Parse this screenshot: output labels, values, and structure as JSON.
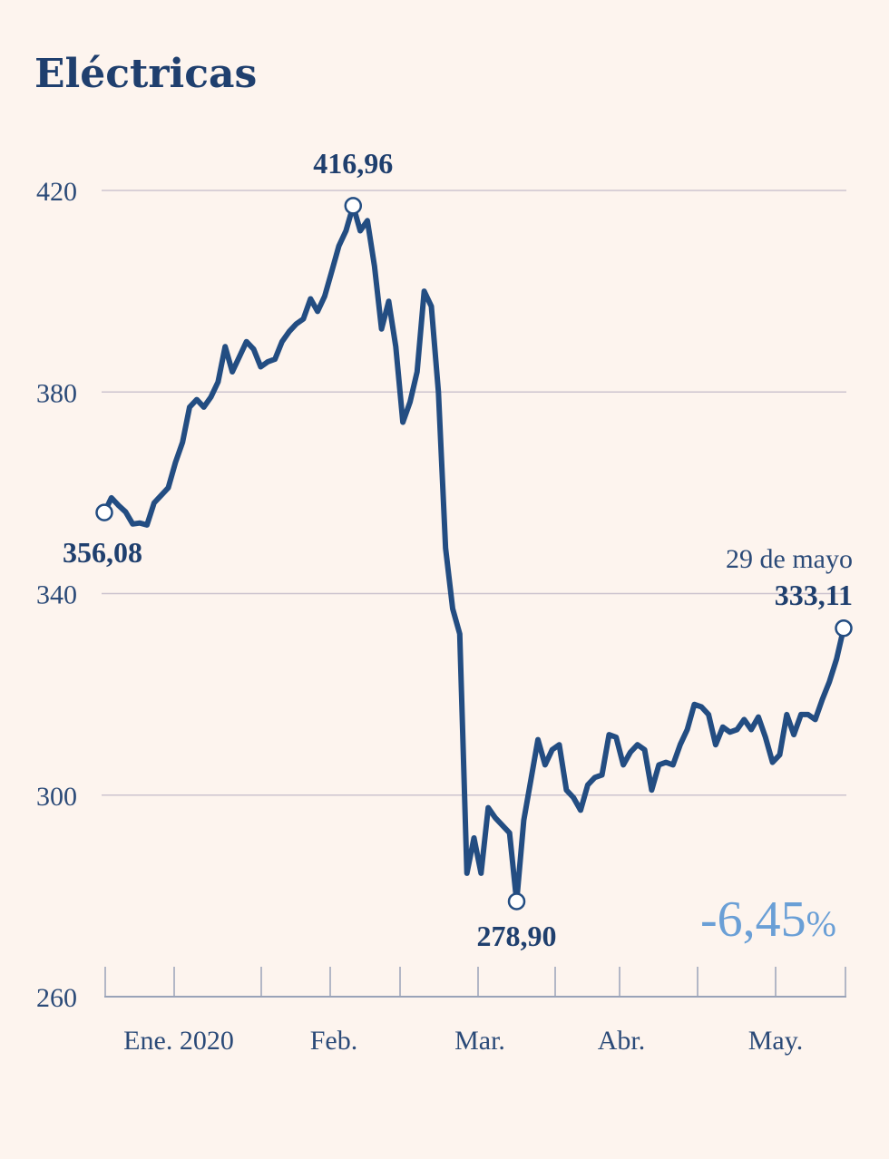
{
  "colors": {
    "background": "#fdf4ee",
    "line": "#234d82",
    "grid": "#cdc4cf",
    "axis": "#9aa3b8",
    "label": "#2b4a78",
    "title": "#1f3f6e",
    "change": "#6a9fd6"
  },
  "chart_data": {
    "type": "line",
    "title": "Eléctricas",
    "xlabel": "",
    "ylabel": "",
    "ylim": [
      260,
      420
    ],
    "yticks": [
      420,
      380,
      340,
      300,
      260
    ],
    "month_labels": [
      "Ene. 2020",
      "Feb.",
      "Mar.",
      "Abr.",
      "May."
    ],
    "grid": true,
    "series": [
      {
        "values": [
          356.08,
          359.0,
          357.5,
          356.2,
          353.8,
          354.0,
          353.6,
          358.0,
          359.5,
          361.0,
          366.0,
          370.0,
          377.0,
          378.5,
          377.0,
          379.0,
          382.0,
          389.0,
          384.0,
          387.0,
          390.0,
          388.5,
          385.0,
          386.0,
          386.5,
          390.0,
          392.0,
          393.5,
          394.5,
          398.5,
          396.0,
          399.0,
          404.0,
          409.0,
          412.0,
          416.96,
          412.0,
          414.0,
          405.0,
          392.5,
          398.0,
          389.0,
          374.0,
          378.0,
          384.0,
          400.0,
          397.0,
          380.0,
          349.0,
          337.0,
          332.0,
          284.5,
          291.5,
          284.5,
          297.5,
          295.5,
          294.0,
          292.5,
          278.9,
          295.0,
          303.0,
          311.0,
          306.0,
          309.0,
          310.0,
          301.0,
          299.5,
          297.0,
          302.0,
          303.5,
          304.0,
          312.0,
          311.5,
          306.0,
          308.5,
          310.0,
          309.0,
          301.0,
          306.0,
          306.5,
          306.0,
          310.0,
          313.0,
          318.0,
          317.5,
          316.0,
          310.0,
          313.5,
          312.5,
          313.0,
          315.0,
          313.0,
          315.5,
          311.5,
          306.5,
          308.0,
          316.0,
          312.0,
          316.0,
          316.0,
          315.0,
          319.0,
          322.5,
          327.0,
          333.11
        ]
      }
    ],
    "annotations": [
      {
        "label": "356,08",
        "value": 356.08
      },
      {
        "label": "416,96",
        "value": 416.96
      },
      {
        "label": "278,90",
        "value": 278.9
      },
      {
        "label": "333,11",
        "value": 333.11,
        "caption": "29 de mayo"
      }
    ],
    "change_label": "-6,45",
    "change_unit": "%"
  }
}
